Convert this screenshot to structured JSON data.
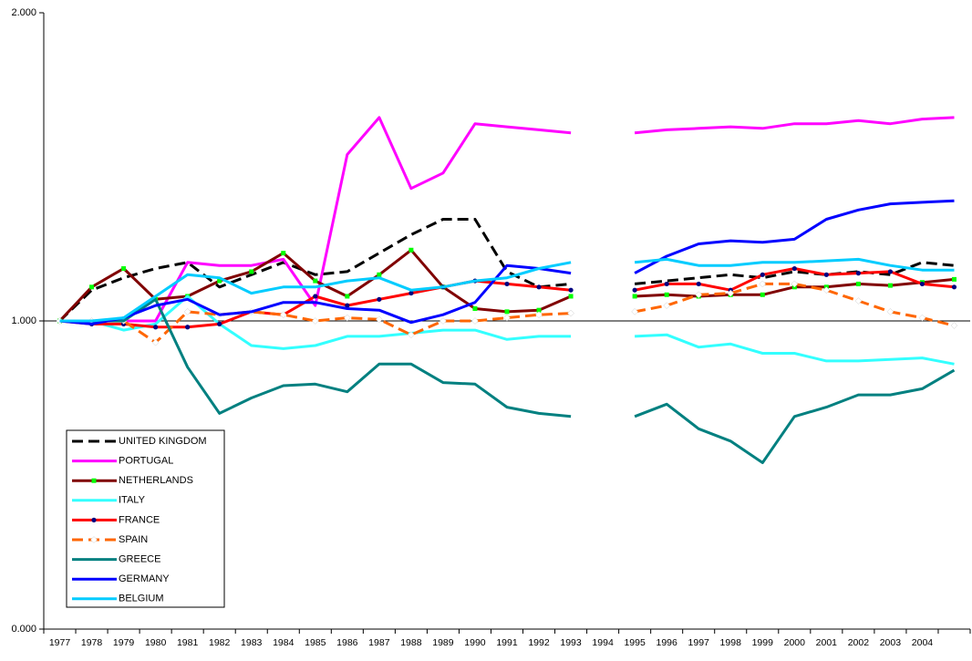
{
  "chart_data": {
    "type": "line",
    "categories": [
      "1977",
      "1978",
      "1979",
      "1980",
      "1981",
      "1982",
      "1983",
      "1984",
      "1985",
      "1986",
      "1987",
      "1988",
      "1989",
      "1990",
      "1991",
      "1992",
      "1993",
      "1994",
      "1995",
      "1996",
      "1997",
      "1998",
      "1999",
      "2000",
      "2001",
      "2002",
      "2003",
      "2004",
      null
    ],
    "ylim": [
      0,
      2
    ],
    "yticks": [
      {
        "value": 0,
        "label": "0.000"
      },
      {
        "value": 1,
        "label": "1.000"
      },
      {
        "value": 2,
        "label": "2.000"
      }
    ],
    "x_axis_at": 1,
    "legend": "bottom-left",
    "series": [
      {
        "name": "UNITED KINGDOM",
        "color": "#000000",
        "dash": true,
        "values": [
          1.0,
          1.1,
          1.14,
          1.17,
          1.19,
          1.11,
          1.15,
          1.19,
          1.15,
          1.16,
          1.22,
          1.28,
          1.33,
          1.33,
          1.16,
          1.11,
          1.12,
          null,
          1.12,
          1.13,
          1.14,
          1.15,
          1.14,
          1.16,
          1.15,
          1.16,
          1.15,
          1.19,
          1.18
        ]
      },
      {
        "name": "PORTUGAL",
        "color": "#ff00ff",
        "values": [
          1.0,
          1.0,
          1.0,
          1.0,
          1.19,
          1.18,
          1.18,
          1.2,
          1.05,
          1.54,
          1.66,
          1.43,
          1.48,
          1.64,
          1.63,
          1.62,
          1.61,
          null,
          1.61,
          1.62,
          1.625,
          1.63,
          1.625,
          1.64,
          1.64,
          1.65,
          1.64,
          1.655,
          1.66
        ]
      },
      {
        "name": "NETHERLANDS",
        "color": "#800000",
        "marker": "square",
        "marker_color": "#00ff00",
        "values": [
          1.0,
          1.11,
          1.17,
          1.07,
          1.08,
          1.13,
          1.16,
          1.22,
          1.13,
          1.08,
          1.15,
          1.23,
          1.11,
          1.04,
          1.03,
          1.035,
          1.08,
          null,
          1.08,
          1.085,
          1.08,
          1.085,
          1.085,
          1.11,
          1.11,
          1.12,
          1.115,
          1.125,
          1.135
        ]
      },
      {
        "name": "ITALY",
        "color": "#33ffff",
        "values": [
          1.0,
          1.0,
          0.97,
          0.99,
          1.08,
          0.99,
          0.92,
          0.91,
          0.92,
          0.95,
          0.95,
          0.96,
          0.97,
          0.97,
          0.94,
          0.95,
          0.95,
          null,
          0.95,
          0.955,
          0.915,
          0.925,
          0.895,
          0.895,
          0.87,
          0.87,
          0.875,
          0.88,
          0.86
        ]
      },
      {
        "name": "FRANCE",
        "color": "#ff0000",
        "marker": "circle",
        "marker_color": "#000080",
        "values": [
          1.0,
          0.99,
          0.99,
          0.98,
          0.98,
          0.99,
          1.03,
          1.02,
          1.08,
          1.05,
          1.07,
          1.09,
          1.11,
          1.13,
          1.12,
          1.11,
          1.1,
          null,
          1.1,
          1.12,
          1.12,
          1.1,
          1.15,
          1.17,
          1.15,
          1.155,
          1.16,
          1.12,
          1.11
        ]
      },
      {
        "name": "SPAIN",
        "color": "#ff6600",
        "dash": true,
        "marker": "diamond",
        "marker_color": "#ffffff",
        "values": [
          1.0,
          1.0,
          1.0,
          0.93,
          1.03,
          1.02,
          1.03,
          1.02,
          1.0,
          1.01,
          1.005,
          0.955,
          1.0,
          1.0,
          1.01,
          1.02,
          1.025,
          null,
          1.03,
          1.05,
          1.085,
          1.09,
          1.12,
          1.12,
          1.1,
          1.065,
          1.03,
          1.01,
          0.985
        ]
      },
      {
        "name": "GREECE",
        "color": "#008080",
        "values": [
          1.0,
          1.0,
          1.0,
          1.07,
          0.85,
          0.7,
          0.75,
          0.79,
          0.795,
          0.77,
          0.86,
          0.86,
          0.8,
          0.795,
          0.72,
          0.7,
          0.69,
          null,
          0.69,
          0.73,
          0.65,
          0.61,
          0.54,
          0.69,
          0.72,
          0.76,
          0.76,
          0.78,
          0.84
        ]
      },
      {
        "name": "GERMANY",
        "color": "#0000ff",
        "values": [
          1.0,
          0.99,
          1.01,
          1.05,
          1.07,
          1.02,
          1.03,
          1.06,
          1.06,
          1.04,
          1.035,
          0.995,
          1.02,
          1.06,
          1.18,
          1.17,
          1.155,
          null,
          1.155,
          1.21,
          1.25,
          1.26,
          1.255,
          1.265,
          1.33,
          1.36,
          1.38,
          1.385,
          1.39
        ]
      },
      {
        "name": "BELGIUM",
        "color": "#00ccff",
        "values": [
          1.0,
          1.0,
          1.01,
          1.08,
          1.15,
          1.14,
          1.09,
          1.11,
          1.11,
          1.13,
          1.14,
          1.1,
          1.11,
          1.13,
          1.14,
          1.17,
          1.19,
          null,
          1.19,
          1.2,
          1.18,
          1.18,
          1.19,
          1.19,
          1.195,
          1.2,
          1.18,
          1.165,
          1.165
        ]
      }
    ]
  }
}
